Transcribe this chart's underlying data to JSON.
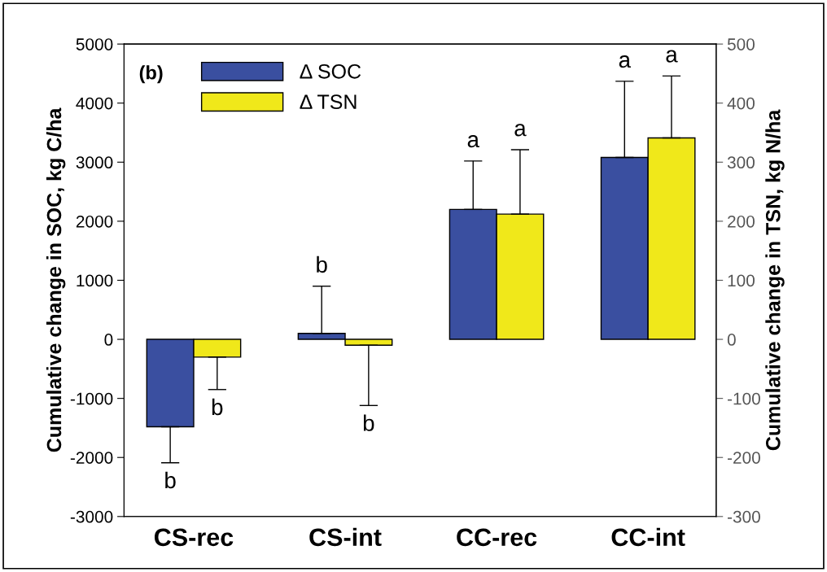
{
  "chart_data": {
    "type": "bar",
    "categories": [
      "CS-rec",
      "CS-int",
      "CC-rec",
      "CC-int"
    ],
    "ylabel": "Cumulative change in SOC, kg C/ha",
    "y2label": "Cumulative change in TSN, kg N/ha",
    "series": [
      {
        "name": "Δ SOC",
        "color": "#3a4fa0",
        "values": [
          -1480,
          100,
          2200,
          3080
        ],
        "errors": [
          [
            -2090,
            -1480
          ],
          [
            100,
            900
          ],
          [
            2200,
            3020
          ],
          [
            3080,
            4370
          ]
        ]
      },
      {
        "name": "Δ TSN",
        "color": "#f0e81a",
        "axis": "y2",
        "values": [
          -30,
          -10,
          212,
          341
        ],
        "errors": [
          [
            -85,
            -30
          ],
          [
            -112,
            -10
          ],
          [
            212,
            321
          ],
          [
            341,
            446
          ]
        ]
      }
    ],
    "ylim": [
      -3000,
      5000
    ],
    "yticks": [
      -3000,
      -2000,
      -1000,
      0,
      1000,
      2000,
      3000,
      4000,
      5000
    ],
    "y2lim": [
      -300,
      500
    ],
    "y2ticks": [
      -300,
      -200,
      -100,
      0,
      100,
      200,
      300,
      400,
      500
    ],
    "legend": "top left",
    "annotations": [
      "(b)",
      "b",
      "b",
      "b",
      "b",
      "a",
      "a",
      "a",
      "a"
    ]
  }
}
